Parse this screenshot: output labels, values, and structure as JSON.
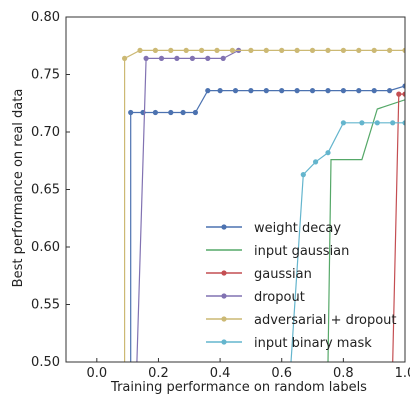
{
  "chart_data": {
    "type": "line",
    "xlabel": "Training performance on random labels",
    "ylabel": "Best performance on real data",
    "xlim": [
      -0.1,
      1.0
    ],
    "ylim": [
      0.5,
      0.8
    ],
    "xticks": [
      "0.0",
      "0.2",
      "0.4",
      "0.6",
      "0.8",
      "1.0"
    ],
    "yticks": [
      "0.50",
      "0.55",
      "0.60",
      "0.65",
      "0.70",
      "0.75",
      "0.80"
    ],
    "grid": false,
    "legend_position": "lower-right",
    "series": [
      {
        "name": "weight decay",
        "color": "#4c72b0",
        "markers": true,
        "points": [
          [
            0.11,
            0.5
          ],
          [
            0.11,
            0.717
          ],
          [
            0.15,
            0.717
          ],
          [
            0.19,
            0.717
          ],
          [
            0.24,
            0.717
          ],
          [
            0.28,
            0.717
          ],
          [
            0.32,
            0.717
          ],
          [
            0.36,
            0.736
          ],
          [
            0.4,
            0.736
          ],
          [
            0.45,
            0.736
          ],
          [
            0.5,
            0.736
          ],
          [
            0.55,
            0.736
          ],
          [
            0.6,
            0.736
          ],
          [
            0.65,
            0.736
          ],
          [
            0.7,
            0.736
          ],
          [
            0.75,
            0.736
          ],
          [
            0.8,
            0.736
          ],
          [
            0.85,
            0.736
          ],
          [
            0.9,
            0.736
          ],
          [
            0.95,
            0.736
          ],
          [
            1.0,
            0.74
          ]
        ]
      },
      {
        "name": "input gaussian",
        "color": "#55a868",
        "markers": false,
        "points": [
          [
            0.75,
            0.5
          ],
          [
            0.76,
            0.676
          ],
          [
            0.86,
            0.676
          ],
          [
            0.91,
            0.72
          ],
          [
            1.0,
            0.728
          ]
        ]
      },
      {
        "name": "gaussian",
        "color": "#c44e52",
        "markers": true,
        "points": [
          [
            0.96,
            0.5
          ],
          [
            0.98,
            0.733
          ],
          [
            1.0,
            0.733
          ]
        ]
      },
      {
        "name": "dropout",
        "color": "#8172b2",
        "markers": true,
        "points": [
          [
            0.13,
            0.5
          ],
          [
            0.16,
            0.764
          ],
          [
            0.21,
            0.764
          ],
          [
            0.26,
            0.764
          ],
          [
            0.31,
            0.764
          ],
          [
            0.36,
            0.764
          ],
          [
            0.41,
            0.764
          ],
          [
            0.46,
            0.771
          ]
        ]
      },
      {
        "name": "adversarial + dropout",
        "color": "#ccb974",
        "markers": true,
        "points": [
          [
            0.09,
            0.5
          ],
          [
            0.09,
            0.764
          ],
          [
            0.14,
            0.771
          ],
          [
            0.19,
            0.771
          ],
          [
            0.24,
            0.771
          ],
          [
            0.29,
            0.771
          ],
          [
            0.34,
            0.771
          ],
          [
            0.39,
            0.771
          ],
          [
            0.44,
            0.771
          ],
          [
            0.5,
            0.771
          ],
          [
            0.55,
            0.771
          ],
          [
            0.6,
            0.771
          ],
          [
            0.65,
            0.771
          ],
          [
            0.7,
            0.771
          ],
          [
            0.75,
            0.771
          ],
          [
            0.8,
            0.771
          ],
          [
            0.85,
            0.771
          ],
          [
            0.9,
            0.771
          ],
          [
            0.95,
            0.771
          ],
          [
            1.0,
            0.771
          ]
        ]
      },
      {
        "name": "input binary mask",
        "color": "#64b5cd",
        "markers": true,
        "points": [
          [
            0.63,
            0.5
          ],
          [
            0.67,
            0.663
          ],
          [
            0.71,
            0.674
          ],
          [
            0.75,
            0.682
          ],
          [
            0.8,
            0.708
          ],
          [
            0.86,
            0.708
          ],
          [
            0.91,
            0.708
          ],
          [
            0.96,
            0.708
          ],
          [
            1.0,
            0.708
          ]
        ]
      }
    ]
  }
}
